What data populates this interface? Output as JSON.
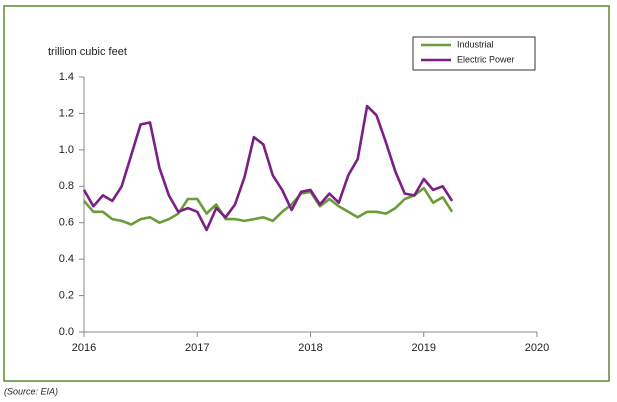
{
  "chart_data": {
    "type": "line",
    "y_axis_label": "trillion cubic feet",
    "source": "(Source: EIA)",
    "x": [
      2016,
      2016.083,
      2016.167,
      2016.25,
      2016.333,
      2016.417,
      2016.5,
      2016.583,
      2016.667,
      2016.75,
      2016.833,
      2016.917,
      2017,
      2017.083,
      2017.167,
      2017.25,
      2017.333,
      2017.417,
      2017.5,
      2017.583,
      2017.667,
      2017.75,
      2017.833,
      2017.917,
      2018,
      2018.083,
      2018.167,
      2018.25,
      2018.333,
      2018.417,
      2018.5,
      2018.583,
      2018.667,
      2018.75,
      2018.833,
      2018.917,
      2019,
      2019.083,
      2019.167,
      2019.25
    ],
    "series": [
      {
        "name": "Industrial",
        "color": "#6b9c3a",
        "values": [
          0.72,
          0.66,
          0.66,
          0.62,
          0.61,
          0.59,
          0.62,
          0.63,
          0.6,
          0.62,
          0.65,
          0.73,
          0.73,
          0.65,
          0.7,
          0.62,
          0.62,
          0.61,
          0.62,
          0.63,
          0.61,
          0.66,
          0.7,
          0.76,
          0.77,
          0.69,
          0.73,
          0.69,
          0.66,
          0.63,
          0.66,
          0.66,
          0.65,
          0.68,
          0.73,
          0.75,
          0.79,
          0.71,
          0.74,
          0.66
        ]
      },
      {
        "name": "Electric Power",
        "color": "#7b1f85",
        "values": [
          0.78,
          0.69,
          0.75,
          0.72,
          0.8,
          0.97,
          1.14,
          1.15,
          0.9,
          0.75,
          0.66,
          0.68,
          0.66,
          0.56,
          0.68,
          0.63,
          0.7,
          0.85,
          1.07,
          1.03,
          0.86,
          0.78,
          0.67,
          0.77,
          0.78,
          0.7,
          0.76,
          0.71,
          0.86,
          0.95,
          1.24,
          1.19,
          1.04,
          0.88,
          0.76,
          0.75,
          0.84,
          0.78,
          0.8,
          0.72
        ]
      }
    ],
    "xlim": [
      2016,
      2020
    ],
    "xticks": [
      2016,
      2017,
      2018,
      2019,
      2020
    ],
    "ylim": [
      0,
      1.4
    ],
    "yticks": [
      {
        "value": 0,
        "label": "0.0"
      },
      {
        "value": 0.2,
        "label": "0.2"
      },
      {
        "value": 0.4,
        "label": "0.4"
      },
      {
        "value": 0.6,
        "label": "0.6"
      },
      {
        "value": 0.8,
        "label": "0.8"
      },
      {
        "value": 1.0,
        "label": "1.0"
      },
      {
        "value": 1.2,
        "label": "1.2"
      },
      {
        "value": 1.4,
        "label": "1.4"
      }
    ],
    "grid": false,
    "legend": "upper right"
  }
}
